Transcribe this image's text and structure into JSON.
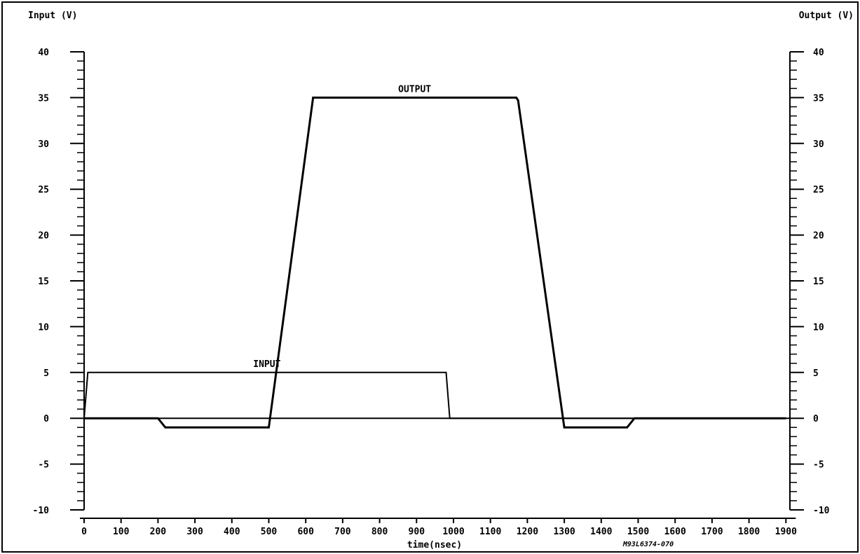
{
  "chart_data": {
    "type": "line",
    "title": "",
    "xlabel": "time(nsec)",
    "ylabel_left": "Input (V)",
    "ylabel_right": "Output (V)",
    "figure_code": "M93L6374-070",
    "xlim": [
      0,
      1900
    ],
    "ylim": [
      -10,
      40
    ],
    "xticks": [
      0,
      100,
      200,
      300,
      400,
      500,
      600,
      700,
      800,
      900,
      1000,
      1100,
      1200,
      1300,
      1400,
      1500,
      1600,
      1700,
      1800,
      1900
    ],
    "yticks": [
      -10,
      -5,
      0,
      5,
      10,
      15,
      20,
      25,
      30,
      35,
      40
    ],
    "xtick_labels": [
      "0",
      "100",
      "200",
      "300",
      "400",
      "500",
      "600",
      "700",
      "800",
      "900",
      "1000",
      "1100",
      "1200",
      "1300",
      "1400",
      "1500",
      "1600",
      "1700",
      "1800",
      "1900"
    ],
    "ytick_labels": [
      "-10",
      "-5",
      "0",
      "5",
      "10",
      "15",
      "20",
      "25",
      "30",
      "35",
      "40"
    ],
    "grid": false,
    "series": [
      {
        "name": "INPUT",
        "x": [
          0,
          10,
          980,
          990,
          1900
        ],
        "y": [
          0,
          5,
          5,
          0,
          0
        ]
      },
      {
        "name": "OUTPUT",
        "x": [
          0,
          200,
          220,
          500,
          620,
          1170,
          1175,
          1300,
          1470,
          1490,
          1900
        ],
        "y": [
          0,
          0,
          -1,
          -1,
          35,
          35,
          34.7,
          -1,
          -1,
          0,
          0
        ]
      }
    ]
  }
}
